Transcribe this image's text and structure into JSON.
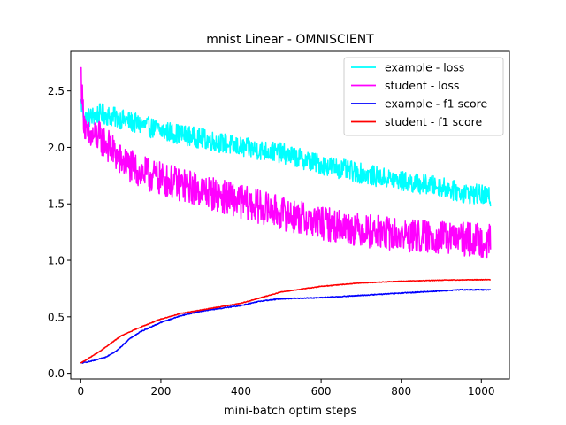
{
  "chart_data": {
    "type": "line",
    "title": "mnist Linear - OMNISCIENT",
    "xlabel": "mini-batch optim steps",
    "ylabel": "",
    "xlim": [
      -25,
      1070
    ],
    "ylim": [
      -0.05,
      2.85
    ],
    "xticks": [
      0,
      200,
      400,
      600,
      800,
      1000
    ],
    "yticks": [
      0.0,
      0.5,
      1.0,
      1.5,
      2.0,
      2.5
    ],
    "xtick_labels": [
      "0",
      "200",
      "400",
      "600",
      "800",
      "1000"
    ],
    "ytick_labels": [
      "0.0",
      "0.5",
      "1.0",
      "1.5",
      "2.0",
      "2.5"
    ],
    "grid": false,
    "legend_position": "upper right",
    "x_step": 1,
    "series": [
      {
        "name": "example - loss",
        "color": "#00ffff",
        "noise": 0.09,
        "anchors": [
          [
            0,
            2.4
          ],
          [
            10,
            2.25
          ],
          [
            50,
            2.3
          ],
          [
            100,
            2.25
          ],
          [
            200,
            2.15
          ],
          [
            300,
            2.08
          ],
          [
            400,
            2.0
          ],
          [
            500,
            1.95
          ],
          [
            600,
            1.85
          ],
          [
            700,
            1.77
          ],
          [
            800,
            1.7
          ],
          [
            900,
            1.65
          ],
          [
            950,
            1.6
          ],
          [
            1000,
            1.58
          ],
          [
            1023,
            1.55
          ]
        ]
      },
      {
        "name": "student - loss",
        "color": "#ff00ff",
        "noise": 0.15,
        "anchors": [
          [
            0,
            2.7
          ],
          [
            5,
            2.35
          ],
          [
            15,
            2.08
          ],
          [
            40,
            2.1
          ],
          [
            60,
            2.05
          ],
          [
            100,
            1.88
          ],
          [
            150,
            1.78
          ],
          [
            200,
            1.72
          ],
          [
            300,
            1.62
          ],
          [
            400,
            1.52
          ],
          [
            500,
            1.42
          ],
          [
            600,
            1.33
          ],
          [
            700,
            1.27
          ],
          [
            800,
            1.22
          ],
          [
            900,
            1.2
          ],
          [
            1000,
            1.18
          ],
          [
            1023,
            1.17
          ]
        ]
      },
      {
        "name": "example - f1 score",
        "color": "#0000ff",
        "noise": 0.004,
        "anchors": [
          [
            0,
            0.09
          ],
          [
            30,
            0.11
          ],
          [
            60,
            0.14
          ],
          [
            90,
            0.2
          ],
          [
            120,
            0.3
          ],
          [
            150,
            0.37
          ],
          [
            200,
            0.45
          ],
          [
            250,
            0.51
          ],
          [
            300,
            0.55
          ],
          [
            400,
            0.6
          ],
          [
            450,
            0.64
          ],
          [
            500,
            0.66
          ],
          [
            600,
            0.67
          ],
          [
            700,
            0.69
          ],
          [
            800,
            0.71
          ],
          [
            900,
            0.73
          ],
          [
            950,
            0.74
          ],
          [
            1023,
            0.74
          ]
        ]
      },
      {
        "name": "student - f1 score",
        "color": "#ff0000",
        "noise": 0.003,
        "anchors": [
          [
            0,
            0.09
          ],
          [
            50,
            0.2
          ],
          [
            100,
            0.33
          ],
          [
            150,
            0.41
          ],
          [
            200,
            0.48
          ],
          [
            250,
            0.53
          ],
          [
            300,
            0.56
          ],
          [
            400,
            0.62
          ],
          [
            450,
            0.67
          ],
          [
            500,
            0.72
          ],
          [
            600,
            0.77
          ],
          [
            700,
            0.8
          ],
          [
            800,
            0.815
          ],
          [
            900,
            0.825
          ],
          [
            1023,
            0.83
          ]
        ]
      }
    ]
  }
}
